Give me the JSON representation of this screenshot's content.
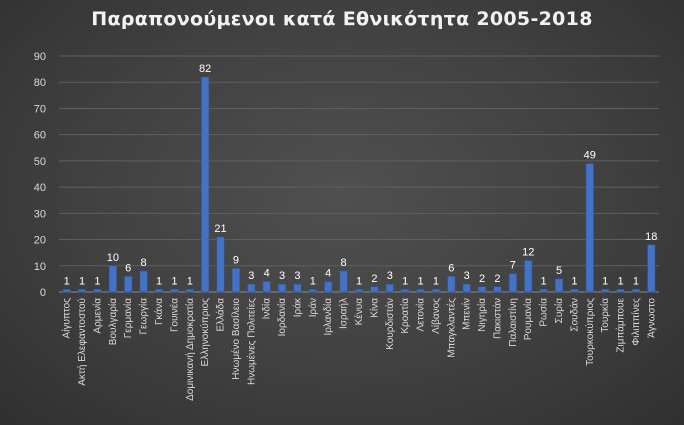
{
  "chart_data": {
    "type": "bar",
    "title": "Παραπονούμενοι κατά Εθνικότητα 2005-2018",
    "xlabel": "",
    "ylabel": "",
    "ylim": [
      0,
      90
    ],
    "yticks": [
      0,
      10,
      20,
      30,
      40,
      50,
      60,
      70,
      80,
      90
    ],
    "grid": true,
    "legend": "none",
    "colors": {
      "bar": "#4472c4",
      "bar_edge": "#2f5597",
      "text": "#d9d9d9",
      "grid": "#5f5f5f"
    },
    "categories": [
      "Αίγυπτος",
      "Ακτή Ελεφαντοστού",
      "Αρμενία",
      "Βουλγαρία",
      "Γερμανία",
      "Γεωργία",
      "Γκάνα",
      "Γουινέα",
      "Δομινικανή Δημοκρατία",
      "Ελληνοκύπριος",
      "Ελλάδα",
      "Ηνωμένο Βασίλειο",
      "Ηνωμένες Πολιτείες",
      "Ινδία",
      "Ιορδανία",
      "Ιράκ",
      "Ιράν",
      "Ιρλανδία",
      "Ισραήλ",
      "Κένυα",
      "Κίνα",
      "Κουρδιστάν",
      "Κροατία",
      "Λετονία",
      "Λίβανος",
      "Μπαγκλαντές",
      "Μπενίν",
      "Νιγηρία",
      "Πακιστάν",
      "Παλαιστίνη",
      "Ρουμανία",
      "Ρωσία",
      "Συρία",
      "Σουδάν",
      "Τουρκοκύπριος",
      "Τουρκία",
      "Ζιμπάμπουε",
      "Φιλιππίνες",
      "Άγνωστο"
    ],
    "values": [
      1,
      1,
      1,
      10,
      6,
      8,
      1,
      1,
      1,
      82,
      21,
      9,
      3,
      4,
      3,
      3,
      1,
      4,
      8,
      1,
      2,
      3,
      1,
      1,
      1,
      6,
      3,
      2,
      2,
      7,
      12,
      1,
      5,
      1,
      49,
      1,
      1,
      1,
      18
    ]
  }
}
